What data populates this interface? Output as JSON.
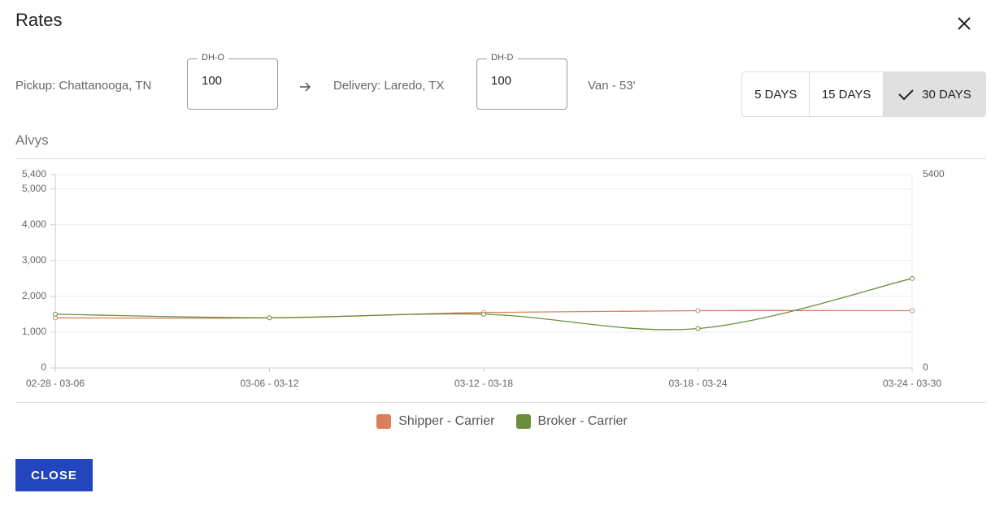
{
  "dialog": {
    "title": "Rates",
    "close_button": "CLOSE"
  },
  "route": {
    "pickup": "Pickup: Chattanooga, TN",
    "dh_o": {
      "label": "DH-O",
      "value": 100
    },
    "delivery": "Delivery: Laredo, TX",
    "dh_d": {
      "label": "DH-D",
      "value": 100
    },
    "equipment": "Van - 53'"
  },
  "range_toggle": {
    "options": [
      {
        "label": "5 DAYS",
        "selected": false
      },
      {
        "label": "15 DAYS",
        "selected": false
      },
      {
        "label": "30 DAYS",
        "selected": true
      }
    ]
  },
  "section_title": "Alvys",
  "chart_data": {
    "type": "line",
    "categories": [
      "02-28 - 03-06",
      "03-06 - 03-12",
      "03-12 - 03-18",
      "03-18 - 03-24",
      "03-24 - 03-30"
    ],
    "series": [
      {
        "name": "Shipper - Carrier",
        "color": "#d9805a",
        "values": [
          1400,
          1400,
          1550,
          1600,
          1600
        ]
      },
      {
        "name": "Broker - Carrier",
        "color": "#6b8e3a",
        "values": [
          1500,
          1400,
          1500,
          1100,
          2500
        ]
      }
    ],
    "ylim": [
      0,
      5400
    ],
    "yticks": [
      0,
      {
        "value": 1000,
        "label": "1,000"
      },
      {
        "value": 2000,
        "label": "2,000"
      },
      {
        "value": 3000,
        "label": "3,000"
      },
      {
        "value": 4000,
        "label": "4,000"
      },
      {
        "value": 5000,
        "label": "5,000"
      },
      {
        "value": 5400,
        "label": "5,400"
      }
    ],
    "y2lim": [
      0,
      5400
    ],
    "y2ticks": [
      0,
      5400
    ],
    "grid": true
  }
}
